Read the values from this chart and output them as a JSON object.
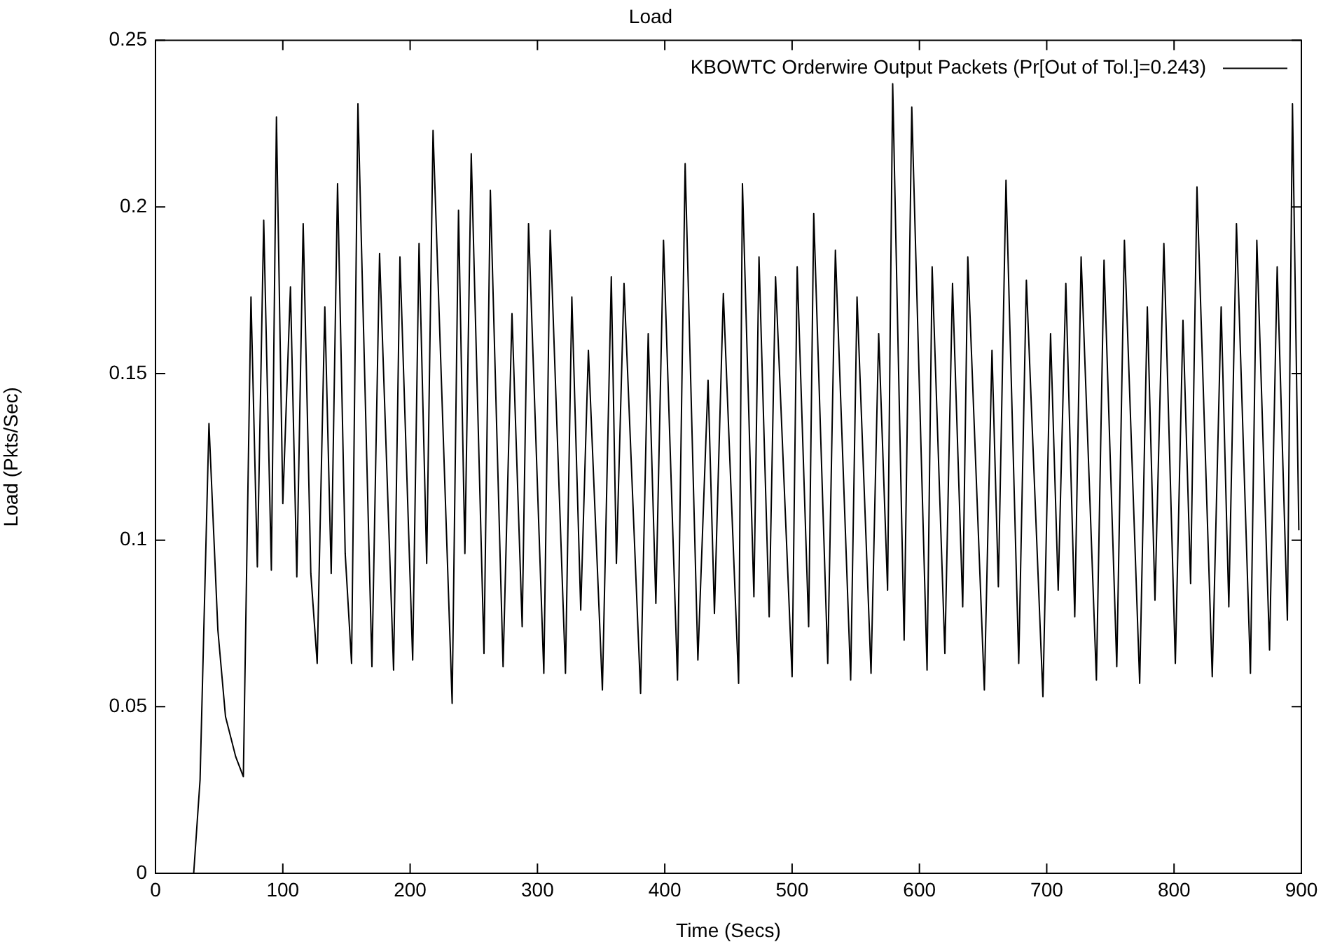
{
  "chart_data": {
    "type": "line",
    "title": "Load",
    "xlabel": "Time (Secs)",
    "ylabel": "Load (Pkts/Sec)",
    "xlim": [
      0,
      900
    ],
    "xticks": [
      0,
      100,
      200,
      300,
      400,
      500,
      600,
      700,
      800,
      900
    ],
    "ylim": [
      0,
      0.25
    ],
    "yticks": [
      0,
      0.05,
      0.1,
      0.15,
      0.2,
      0.25
    ],
    "grid": false,
    "legend": "top right",
    "marker": "none",
    "line_style": "solid",
    "series": [
      {
        "name": "KBOWTC Orderwire Output Packets (Pr[Out of Tol.]=0.243)",
        "color": "#000000",
        "x": [
          30,
          35,
          42,
          49,
          55,
          63,
          69,
          75,
          80,
          85,
          91,
          95,
          100,
          106,
          111,
          116,
          122,
          127,
          133,
          138,
          143,
          149,
          154,
          159,
          170,
          176,
          187,
          192,
          202,
          207,
          213,
          218,
          233,
          238,
          243,
          248,
          258,
          263,
          273,
          280,
          288,
          293,
          305,
          310,
          322,
          327,
          334,
          340,
          351,
          358,
          362,
          368,
          381,
          387,
          393,
          399,
          410,
          416,
          426,
          434,
          439,
          446,
          458,
          461,
          470,
          474,
          482,
          487,
          500,
          504,
          513,
          517,
          528,
          534,
          546,
          551,
          562,
          568,
          575,
          579,
          588,
          594,
          606,
          610,
          620,
          626,
          634,
          638,
          651,
          657,
          662,
          668,
          678,
          684,
          697,
          703,
          709,
          715,
          722,
          727,
          739,
          745,
          755,
          761,
          773,
          779,
          785,
          792,
          801,
          807,
          813,
          818,
          830,
          837,
          843,
          849,
          860,
          865,
          875,
          881,
          889,
          893,
          898
        ],
        "values": [
          0,
          0.028,
          0.135,
          0.073,
          0.047,
          0.035,
          0.029,
          0.173,
          0.092,
          0.196,
          0.091,
          0.227,
          0.111,
          0.176,
          0.089,
          0.195,
          0.09,
          0.063,
          0.17,
          0.09,
          0.207,
          0.096,
          0.063,
          0.231,
          0.062,
          0.186,
          0.061,
          0.185,
          0.064,
          0.189,
          0.093,
          0.223,
          0.051,
          0.199,
          0.096,
          0.216,
          0.066,
          0.205,
          0.062,
          0.168,
          0.074,
          0.195,
          0.06,
          0.193,
          0.06,
          0.173,
          0.079,
          0.157,
          0.055,
          0.179,
          0.093,
          0.177,
          0.054,
          0.162,
          0.081,
          0.19,
          0.058,
          0.213,
          0.064,
          0.148,
          0.078,
          0.174,
          0.057,
          0.207,
          0.083,
          0.185,
          0.077,
          0.179,
          0.059,
          0.182,
          0.074,
          0.198,
          0.063,
          0.187,
          0.058,
          0.173,
          0.06,
          0.162,
          0.085,
          0.237,
          0.07,
          0.23,
          0.061,
          0.182,
          0.066,
          0.177,
          0.08,
          0.185,
          0.055,
          0.157,
          0.086,
          0.208,
          0.063,
          0.178,
          0.053,
          0.162,
          0.085,
          0.177,
          0.077,
          0.185,
          0.058,
          0.184,
          0.062,
          0.19,
          0.057,
          0.17,
          0.082,
          0.189,
          0.063,
          0.166,
          0.087,
          0.206,
          0.059,
          0.17,
          0.08,
          0.195,
          0.06,
          0.19,
          0.067,
          0.182,
          0.076,
          0.231,
          0.103
        ]
      }
    ]
  }
}
